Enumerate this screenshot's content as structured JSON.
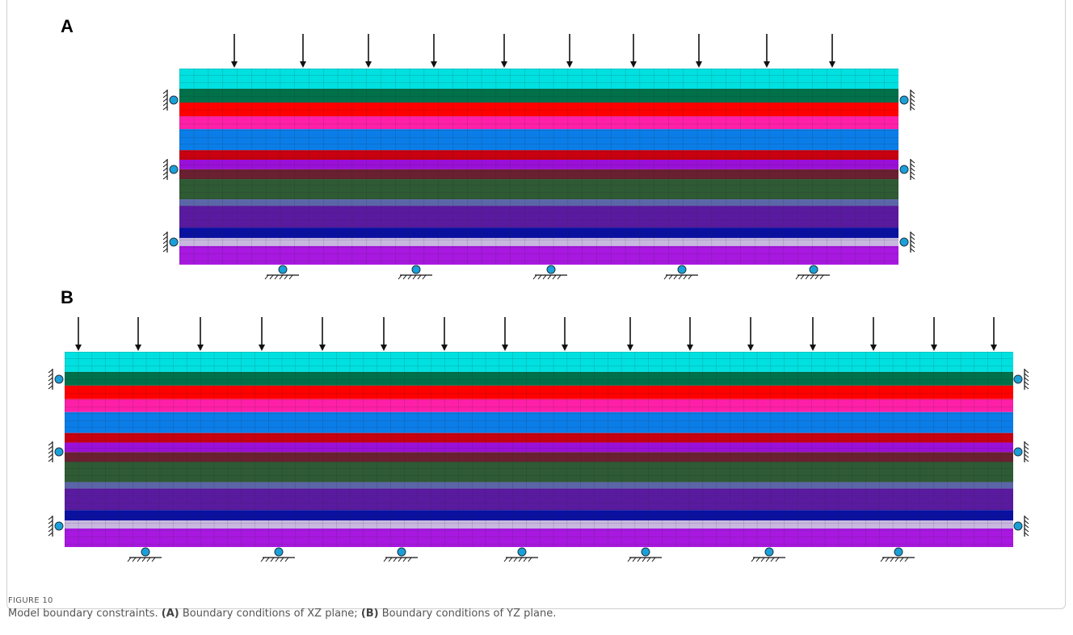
{
  "panels": [
    {
      "label": "A"
    },
    {
      "label": "B"
    }
  ],
  "caption": {
    "figure_label": "FIGURE 10",
    "intro": "Model boundary constraints.",
    "a_tag": "(A)",
    "a_text": "Boundary conditions of XZ plane;",
    "b_tag": "(B)",
    "b_text": "Boundary conditions of YZ plane."
  }
}
